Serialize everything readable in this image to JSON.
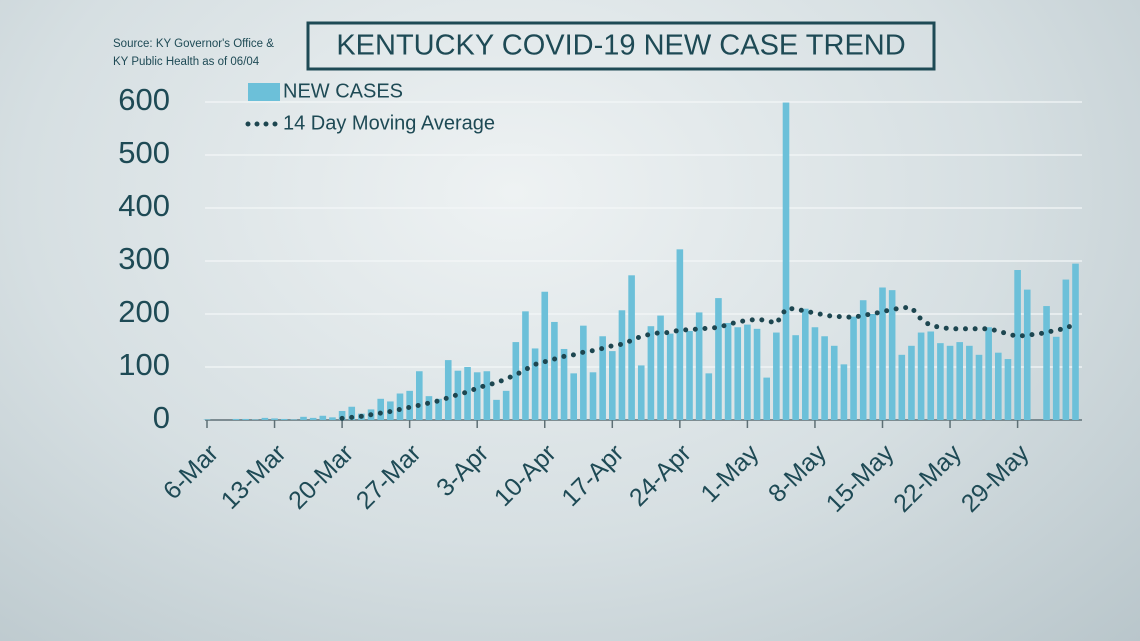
{
  "chart_data": {
    "type": "bar",
    "title": "KENTUCKY COVID-19 NEW CASE TREND",
    "source": [
      "Source: KY Governor's Office &",
      "KY Public Health as of 06/04"
    ],
    "categories": [
      "6-Mar",
      null,
      null,
      null,
      null,
      null,
      null,
      "13-Mar",
      null,
      null,
      null,
      null,
      null,
      null,
      "20-Mar",
      null,
      null,
      null,
      null,
      null,
      null,
      "27-Mar",
      null,
      null,
      null,
      null,
      null,
      null,
      "3-Apr",
      null,
      null,
      null,
      null,
      null,
      null,
      "10-Apr",
      null,
      null,
      null,
      null,
      null,
      null,
      "17-Apr",
      null,
      null,
      null,
      null,
      null,
      null,
      "24-Apr",
      null,
      null,
      null,
      null,
      null,
      null,
      "1-May",
      null,
      null,
      null,
      null,
      null,
      null,
      "8-May",
      null,
      null,
      null,
      null,
      null,
      null,
      "15-May",
      null,
      null,
      null,
      null,
      null,
      null,
      "22-May",
      null,
      null,
      null,
      null,
      null,
      null,
      "29-May",
      null,
      null,
      null,
      null,
      null,
      null
    ],
    "series": [
      {
        "name": "NEW CASES",
        "type": "bar",
        "color": "#6cc0d9",
        "values": [
          1,
          0,
          0,
          2,
          2,
          1,
          4,
          3,
          2,
          1,
          6,
          4,
          8,
          5,
          17,
          25,
          12,
          20,
          40,
          35,
          50,
          55,
          92,
          45,
          40,
          113,
          93,
          100,
          90,
          92,
          38,
          55,
          147,
          205,
          135,
          242,
          185,
          134,
          88,
          178,
          90,
          158,
          130,
          207,
          273,
          103,
          177,
          197,
          163,
          322,
          168,
          203,
          88,
          230,
          183,
          175,
          180,
          172,
          80,
          165,
          599,
          160,
          210,
          175,
          158,
          140,
          105,
          195,
          226,
          200,
          250,
          245,
          123,
          140,
          165,
          167,
          145,
          140,
          147,
          140,
          123,
          175,
          127,
          115,
          283,
          246,
          0,
          215,
          157,
          265,
          295
        ]
      },
      {
        "name": "14 Day Moving Average",
        "type": "line",
        "color": "#1d4650",
        "values": [
          null,
          null,
          null,
          null,
          null,
          null,
          null,
          null,
          null,
          null,
          null,
          null,
          null,
          null,
          3,
          5,
          7,
          10,
          13,
          16,
          20,
          24,
          28,
          32,
          36,
          42,
          48,
          53,
          60,
          66,
          70,
          78,
          85,
          95,
          105,
          110,
          115,
          120,
          123,
          128,
          131,
          135,
          140,
          143,
          150,
          158,
          162,
          165,
          165,
          170,
          170,
          172,
          173,
          175,
          180,
          185,
          188,
          190,
          188,
          182,
          210,
          210,
          205,
          202,
          198,
          195,
          195,
          193,
          198,
          200,
          205,
          208,
          212,
          212,
          190,
          178,
          175,
          172,
          172,
          172,
          172,
          172,
          168,
          162,
          158,
          160,
          162,
          165,
          170,
          172,
          183
        ]
      }
    ],
    "ylim": [
      0,
      600
    ],
    "yticks": [
      0,
      100,
      200,
      300,
      400,
      500,
      600
    ],
    "grid": true
  }
}
